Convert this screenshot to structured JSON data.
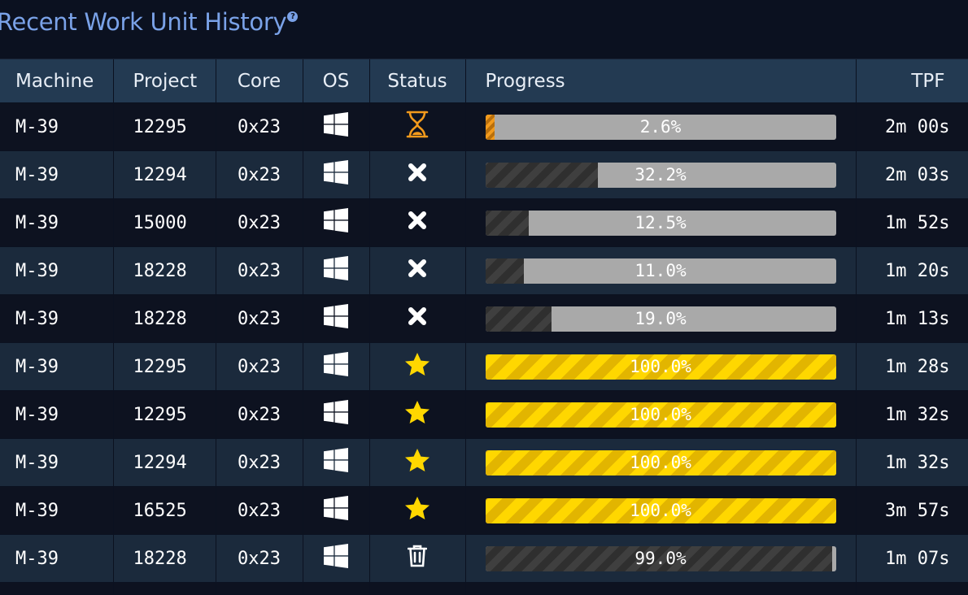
{
  "title": "Recent Work Unit History",
  "help_icon": "question-circle-icon",
  "columns": {
    "machine": "Machine",
    "project": "Project",
    "core": "Core",
    "os": "OS",
    "status": "Status",
    "progress": "Progress",
    "tpf": "TPF"
  },
  "rows": [
    {
      "machine": "M-39",
      "project": "12295",
      "core": "0x23",
      "os": "windows-icon",
      "status": "hourglass-icon",
      "progress": 2.6,
      "progress_label": "2.6%",
      "progress_style": "running",
      "tpf": "2m 00s"
    },
    {
      "machine": "M-39",
      "project": "12294",
      "core": "0x23",
      "os": "windows-icon",
      "status": "failed-icon",
      "progress": 32.2,
      "progress_label": "32.2%",
      "progress_style": "failed",
      "tpf": "2m 03s"
    },
    {
      "machine": "M-39",
      "project": "15000",
      "core": "0x23",
      "os": "windows-icon",
      "status": "failed-icon",
      "progress": 12.5,
      "progress_label": "12.5%",
      "progress_style": "failed",
      "tpf": "1m 52s"
    },
    {
      "machine": "M-39",
      "project": "18228",
      "core": "0x23",
      "os": "windows-icon",
      "status": "failed-icon",
      "progress": 11.0,
      "progress_label": "11.0%",
      "progress_style": "failed",
      "tpf": "1m 20s"
    },
    {
      "machine": "M-39",
      "project": "18228",
      "core": "0x23",
      "os": "windows-icon",
      "status": "failed-icon",
      "progress": 19.0,
      "progress_label": "19.0%",
      "progress_style": "failed",
      "tpf": "1m 13s"
    },
    {
      "machine": "M-39",
      "project": "12295",
      "core": "0x23",
      "os": "windows-icon",
      "status": "star-icon",
      "progress": 100.0,
      "progress_label": "100.0%",
      "progress_style": "complete",
      "tpf": "1m 28s"
    },
    {
      "machine": "M-39",
      "project": "12295",
      "core": "0x23",
      "os": "windows-icon",
      "status": "star-icon",
      "progress": 100.0,
      "progress_label": "100.0%",
      "progress_style": "complete",
      "tpf": "1m 32s"
    },
    {
      "machine": "M-39",
      "project": "12294",
      "core": "0x23",
      "os": "windows-icon",
      "status": "star-icon",
      "progress": 100.0,
      "progress_label": "100.0%",
      "progress_style": "complete",
      "tpf": "1m 32s"
    },
    {
      "machine": "M-39",
      "project": "16525",
      "core": "0x23",
      "os": "windows-icon",
      "status": "star-icon",
      "progress": 100.0,
      "progress_label": "100.0%",
      "progress_style": "complete",
      "tpf": "3m 57s"
    },
    {
      "machine": "M-39",
      "project": "18228",
      "core": "0x23",
      "os": "windows-icon",
      "status": "trash-icon",
      "progress": 99.0,
      "progress_label": "99.0%",
      "progress_style": "dumped",
      "tpf": "1m 07s"
    }
  ],
  "colors": {
    "title": "#7aa2e8",
    "header_bg": "#233a52",
    "row_dark": "#0d1220",
    "row_light": "#1b2a3c",
    "running": "#f29a1c",
    "complete": "#ffd700",
    "bar_track": "#a9a9a9"
  }
}
